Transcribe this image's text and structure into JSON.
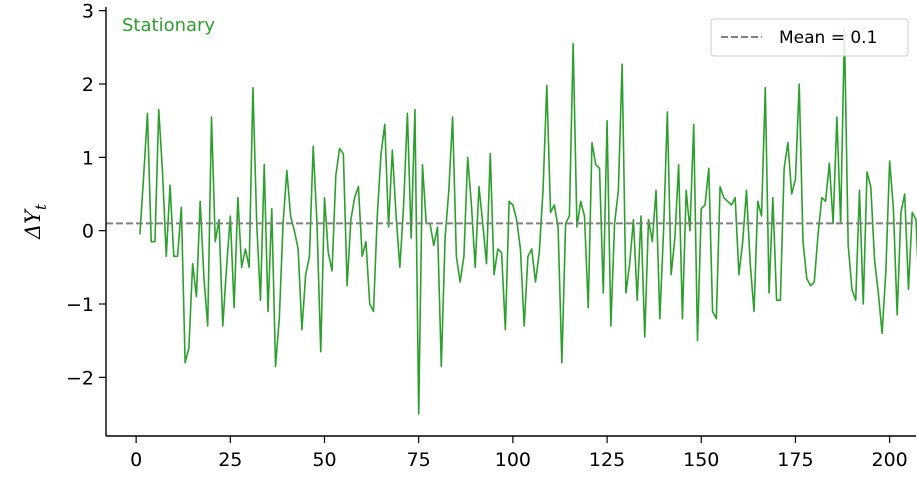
{
  "chart_data": {
    "type": "line",
    "title": "",
    "xlabel": "",
    "ylabel": "ΔY",
    "ylabel_subscript": "t",
    "xlim": [
      -8,
      207
    ],
    "ylim": [
      -2.8,
      3.05
    ],
    "xticks": [
      0,
      25,
      50,
      75,
      100,
      125,
      150,
      175,
      200
    ],
    "yticks": [
      -2,
      -1,
      0,
      1,
      2,
      3
    ],
    "xtick_labels": [
      "0",
      "25",
      "50",
      "75",
      "100",
      "125",
      "150",
      "175",
      "200"
    ],
    "ytick_labels": [
      "−2",
      "−1",
      "0",
      "1",
      "2",
      "3"
    ],
    "grid": false,
    "legend_placement": "top-right",
    "annotation": "Stationary",
    "series": [
      {
        "color": "#2ca02c",
        "x_start": 1,
        "values": [
          -0.05,
          0.75,
          1.6,
          -0.15,
          -0.15,
          1.65,
          0.8,
          -0.35,
          0.62,
          -0.35,
          -0.35,
          0.32,
          -1.8,
          -1.6,
          -0.45,
          -0.9,
          0.4,
          -0.65,
          -1.3,
          1.55,
          -0.15,
          0.15,
          -1.3,
          -0.5,
          0.2,
          -1.05,
          0.45,
          -0.5,
          -0.25,
          -0.5,
          1.95,
          0.1,
          -0.95,
          0.9,
          -1.1,
          0.3,
          -1.85,
          -1.2,
          0.1,
          0.82,
          0.2,
          0.0,
          -0.25,
          -1.35,
          -0.6,
          -0.35,
          1.15,
          0.1,
          -1.65,
          0.45,
          -0.3,
          -0.55,
          0.75,
          1.12,
          1.05,
          -0.75,
          0.15,
          0.45,
          0.6,
          -0.35,
          -0.15,
          -1.0,
          -1.1,
          0.2,
          1.05,
          1.45,
          0.05,
          1.1,
          0.2,
          -0.5,
          0.35,
          1.6,
          -0.1,
          1.65,
          -2.5,
          0.9,
          0.1,
          0.1,
          -0.2,
          0.05,
          -1.85,
          -0.1,
          0.55,
          1.55,
          -0.35,
          -0.7,
          -0.35,
          1.0,
          0.35,
          -0.5,
          0.6,
          0.1,
          -0.45,
          1.05,
          -0.6,
          -0.25,
          -0.3,
          -1.35,
          0.4,
          0.35,
          0.15,
          -0.25,
          -1.3,
          -0.35,
          -0.25,
          -0.7,
          -0.3,
          0.55,
          1.98,
          0.25,
          0.35,
          0.05,
          -1.8,
          0.1,
          0.2,
          2.55,
          0.05,
          0.4,
          0.2,
          -1.05,
          1.2,
          0.9,
          0.85,
          -0.85,
          1.5,
          -1.3,
          0.1,
          0.55,
          2.27,
          -0.85,
          -0.45,
          0.15,
          -0.95,
          0.2,
          -1.45,
          0.15,
          -0.15,
          0.55,
          -1.2,
          0.0,
          1.62,
          -0.6,
          -0.1,
          0.9,
          -1.2,
          0.55,
          0.0,
          1.45,
          -1.5,
          0.3,
          0.35,
          0.85,
          -1.1,
          -1.2,
          0.6,
          0.45,
          0.4,
          0.35,
          0.45,
          -0.6,
          -0.15,
          0.55,
          -0.45,
          -1.1,
          0.4,
          0.2,
          1.95,
          -0.85,
          0.45,
          -0.95,
          -0.95,
          0.85,
          1.2,
          0.5,
          0.7,
          2.0,
          -0.15,
          -0.65,
          -0.75,
          -0.7,
          -0.05,
          0.45,
          0.4,
          0.92,
          0.1,
          1.55,
          0.1,
          2.75,
          -0.2,
          -0.8,
          -0.95,
          0.55,
          -1.0,
          0.8,
          0.6,
          -0.4,
          -0.85,
          -1.4,
          -0.55,
          0.95,
          0.3,
          -1.15,
          0.25,
          0.5,
          -0.8,
          0.25,
          0.15,
          -1.05
        ]
      }
    ],
    "reference_lines": [
      {
        "name": "Mean = 0.1",
        "y": 0.1,
        "color": "#808080",
        "style": "dashed"
      }
    ]
  }
}
